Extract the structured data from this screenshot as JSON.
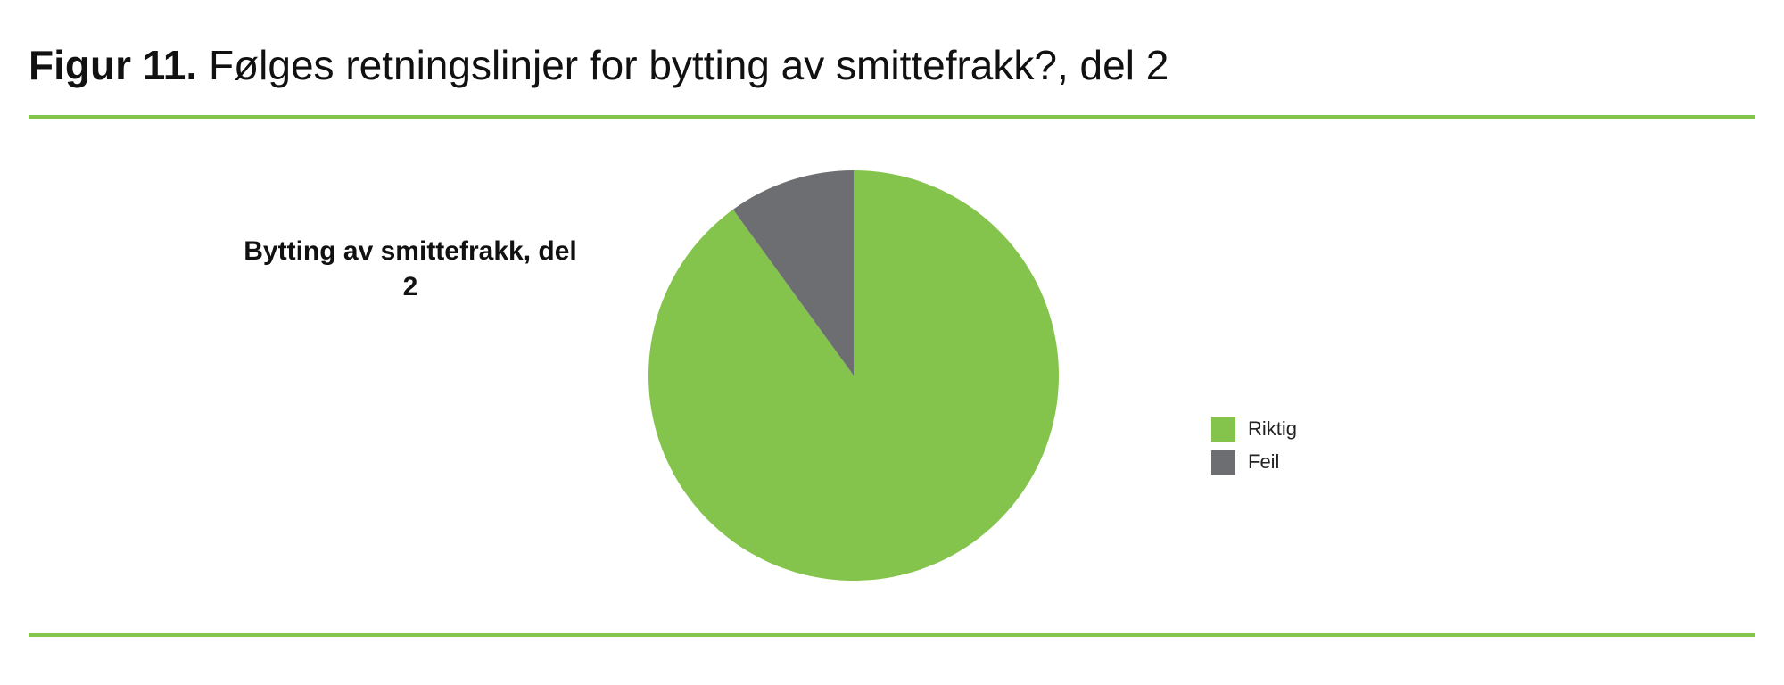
{
  "chart_data": {
    "type": "pie",
    "figure_label": "Figur 11.",
    "title": "Følges retningslinjer for bytting av smittefrakk?, del 2",
    "subtitle": "Bytting av smittefrakk, del 2",
    "categories": [
      "Riktig",
      "Feil"
    ],
    "values": [
      90,
      10
    ],
    "colors": [
      "#84c44c",
      "#6d6e71"
    ],
    "legend": "right"
  }
}
